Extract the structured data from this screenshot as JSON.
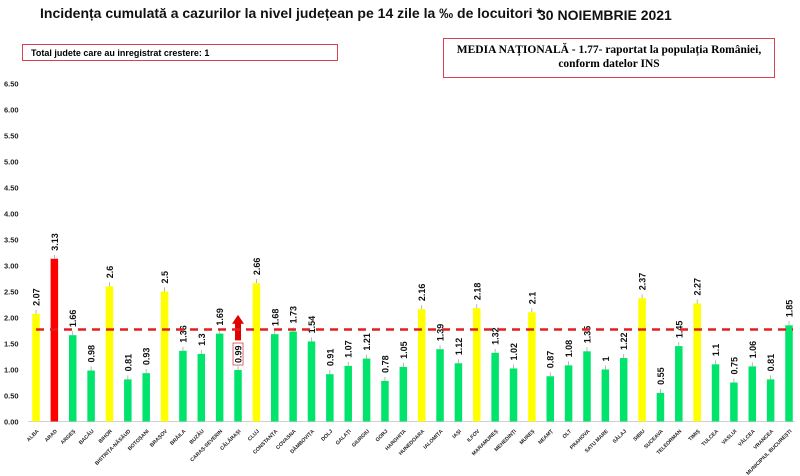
{
  "header": {
    "title": "Incidența cumulată a cazurilor la nivel județean pe 14 zile la ‰ de locuitori *",
    "date": "30 NOIEMBRIE 2021",
    "increase_box": "Total judete care au inregistrat crestere: 1",
    "national_line1": "MEDIA NAȚIONALĂ - 1.77-  raportat la populația României,",
    "national_line2": "conform datelor INS"
  },
  "chart_data": {
    "type": "bar",
    "title": "Incidența cumulată a cazurilor la nivel județean pe 14 zile la ‰ de locuitori *",
    "ylim": [
      0,
      6.5
    ],
    "yticks": [
      "0.00",
      "0.50",
      "1.00",
      "1.50",
      "2.00",
      "2.50",
      "3.00",
      "3.50",
      "4.00",
      "4.50",
      "5.00",
      "5.50",
      "6.00",
      "6.50"
    ],
    "grid": false,
    "reference_line": {
      "value": 1.77,
      "color": "#e02020",
      "style": "dashed"
    },
    "categories": [
      "ALBA",
      "ARAD",
      "ARGEȘ",
      "BACĂU",
      "BIHOR",
      "BISTRIȚA-NĂSĂUD",
      "BOTOȘANI",
      "BRAȘOV",
      "BRĂILA",
      "BUZĂU",
      "CARAȘ-SEVERIN",
      "CĂLĂRAȘI",
      "CLUJ",
      "CONSTANȚA",
      "COVASNA",
      "DÂMBOVIȚA",
      "DOLJ",
      "GALAȚI",
      "GIURGIU",
      "GORJ",
      "HARGHITA",
      "HUNEDOARA",
      "IALOMIȚA",
      "IAȘI",
      "ILFOV",
      "MARAMUREȘ",
      "MEHEDINȚI",
      "MUREȘ",
      "NEAMȚ",
      "OLT",
      "PRAHOVA",
      "SATU MARE",
      "SĂLAJ",
      "SIBIU",
      "SUCEAVA",
      "TELEORMAN",
      "TIMIȘ",
      "TULCEA",
      "VASLUI",
      "VÂLCEA",
      "VRANCEA",
      "MUNICIPIUL BUCUREȘTI"
    ],
    "values": [
      2.07,
      3.13,
      1.66,
      0.98,
      2.6,
      0.81,
      0.93,
      2.5,
      1.36,
      1.3,
      1.69,
      0.99,
      2.66,
      1.68,
      1.73,
      1.54,
      0.91,
      1.07,
      1.21,
      0.78,
      1.05,
      2.16,
      1.39,
      1.12,
      2.18,
      1.32,
      1.02,
      2.1,
      0.87,
      1.08,
      1.35,
      1,
      1.22,
      2.37,
      0.55,
      1.45,
      2.27,
      1.1,
      0.75,
      1.06,
      0.81,
      1.85
    ],
    "colors": {
      "green": "#00e46c",
      "yellow": "#ffff00",
      "red": "#ff0000"
    },
    "color_thresholds": {
      "yellow_from": 2.0,
      "red_from": 3.0
    },
    "increase_marker": {
      "category": "CĂLĂRAȘI",
      "icon": "arrow-up-icon",
      "color": "#e00000"
    }
  }
}
